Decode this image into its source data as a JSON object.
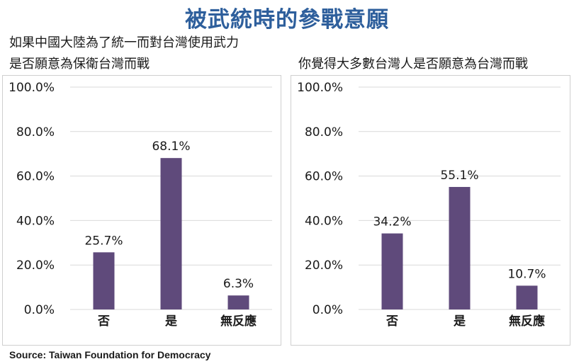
{
  "title": "被武統時的參戰意願",
  "left_subtitle_line1": "如果中國大陸為了統一而對台灣使用武力",
  "left_subtitle_line2": "是否願意為保衛台灣而戰",
  "right_subtitle": "你覺得大多數台灣人是否願意為台灣而戰",
  "source": "Source: Taiwan Foundation for Democracy",
  "colors": {
    "bar": "#5f4a7b",
    "title": "#2e5f9c",
    "grid": "#d9d9d9"
  },
  "chart_data": [
    {
      "type": "bar",
      "title": "如果中國大陸為了統一而對台灣使用武力 是否願意為保衛台灣而戰",
      "categories": [
        "否",
        "是",
        "無反應"
      ],
      "values": [
        25.7,
        68.1,
        6.3
      ],
      "value_labels": [
        "25.7%",
        "68.1%",
        "6.3%"
      ],
      "ylim": [
        0,
        100
      ],
      "yticks": [
        "0.0%",
        "20.0%",
        "40.0%",
        "60.0%",
        "80.0%",
        "100.0%"
      ],
      "grid": true
    },
    {
      "type": "bar",
      "title": "你覺得大多數台灣人是否願意為台灣而戰",
      "categories": [
        "否",
        "是",
        "無反應"
      ],
      "values": [
        34.2,
        55.1,
        10.7
      ],
      "value_labels": [
        "34.2%",
        "55.1%",
        "10.7%"
      ],
      "ylim": [
        0,
        100
      ],
      "yticks": [
        "0.0%",
        "20.0%",
        "40.0%",
        "60.0%",
        "80.0%",
        "100.0%"
      ],
      "grid": true
    }
  ]
}
